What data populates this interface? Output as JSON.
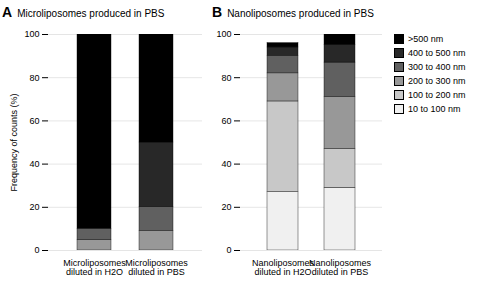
{
  "chart_data": [
    {
      "type": "bar",
      "stacked": true,
      "title": "Microliposomes produced in PBS",
      "annotations": [
        "A"
      ],
      "categories": [
        "Microliposomes\ndiluted in H2O",
        "Microliposomes\ndiluted in PBS"
      ],
      "ylabel": "Frequency of counts (%)",
      "series": [
        {
          "name": "10 to 100 nm",
          "color": "#f0f0f0",
          "values": [
            0,
            0
          ]
        },
        {
          "name": "100 to 200 nm",
          "color": "#c8c8c8",
          "values": [
            0,
            0
          ]
        },
        {
          "name": "200 to 300 nm",
          "color": "#989898",
          "values": [
            5,
            9
          ]
        },
        {
          "name": "300 to 400 nm",
          "color": "#606060",
          "values": [
            5,
            11
          ]
        },
        {
          "name": "400 to 500 nm",
          "color": "#282828",
          "values": [
            0,
            30
          ]
        },
        {
          "name": ">500 nm",
          "color": "#000000",
          "values": [
            90,
            50
          ]
        }
      ],
      "ylim": [
        0,
        100
      ],
      "yticks": [
        0,
        20,
        40,
        60,
        80,
        100
      ],
      "grid": true
    },
    {
      "type": "bar",
      "stacked": true,
      "title": "Nanoliposomes produced in PBS",
      "annotations": [
        "B"
      ],
      "categories": [
        "Nanoliposomes\ndiluted in H2O",
        "Nanoliposomes\ndiluted in PBS"
      ],
      "series": [
        {
          "name": "10 to 100 nm",
          "color": "#f0f0f0",
          "values": [
            27,
            29
          ]
        },
        {
          "name": "100 to 200 nm",
          "color": "#c8c8c8",
          "values": [
            42,
            18
          ]
        },
        {
          "name": "200 to 300 nm",
          "color": "#989898",
          "values": [
            13,
            24
          ]
        },
        {
          "name": "300 to 400 nm",
          "color": "#606060",
          "values": [
            8,
            16
          ]
        },
        {
          "name": "400 to 500 nm",
          "color": "#282828",
          "values": [
            4,
            8
          ]
        },
        {
          "name": ">500 nm",
          "color": "#000000",
          "values": [
            2,
            5
          ]
        }
      ],
      "ylim": [
        0,
        100
      ],
      "yticks": [
        0,
        20,
        40,
        60,
        80,
        100
      ],
      "grid": true,
      "legend": "right"
    }
  ]
}
